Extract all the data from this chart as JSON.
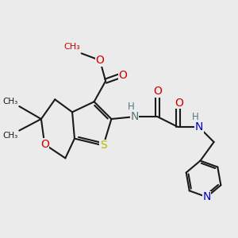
{
  "background_color": "#ebebeb",
  "bond_color": "#1a1a1a",
  "bond_width": 1.5,
  "figsize": [
    3.0,
    3.0
  ],
  "dpi": 100,
  "S_color": "#b8b800",
  "O_color": "#cc0000",
  "N_color": "#0000cc",
  "NH_color": "#557777",
  "C_color": "#1a1a1a",
  "xlim": [
    0,
    10
  ],
  "ylim": [
    0,
    10
  ]
}
